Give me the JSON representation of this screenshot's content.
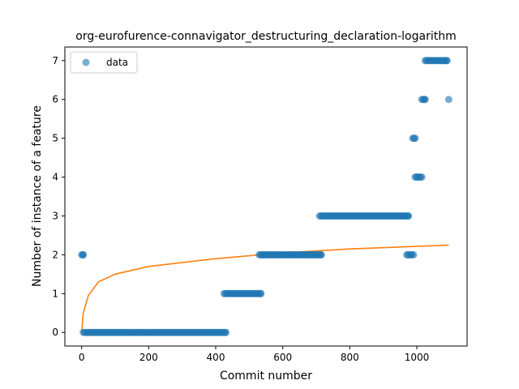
{
  "chart_data": {
    "type": "scatter",
    "title": "org-eurofurence-connavigator_destructuring_declaration-logarithm",
    "xlabel": "Commit number",
    "ylabel": "Number of instance of a feature",
    "xlim": [
      -50,
      1150
    ],
    "ylim": [
      -0.35,
      7.35
    ],
    "xticks": [
      0,
      200,
      400,
      600,
      800,
      1000
    ],
    "yticks": [
      0,
      1,
      2,
      3,
      4,
      5,
      6,
      7
    ],
    "legend": {
      "placement": "top-left",
      "entries": [
        "data"
      ]
    },
    "grid": false,
    "colors": {
      "data": "#1f77b4",
      "fit": "#ff7f0e"
    },
    "series": [
      {
        "name": "data",
        "kind": "scatter",
        "runs": [
          {
            "x_start": 0,
            "x_end": 5,
            "y": 2
          },
          {
            "x_start": 5,
            "x_end": 430,
            "y": 0
          },
          {
            "x_start": 425,
            "x_end": 535,
            "y": 1
          },
          {
            "x_start": 530,
            "x_end": 715,
            "y": 2
          },
          {
            "x_start": 710,
            "x_end": 975,
            "y": 3
          },
          {
            "x_start": 970,
            "x_end": 990,
            "y": 2
          },
          {
            "x_start": 988,
            "x_end": 995,
            "y": 5
          },
          {
            "x_start": 995,
            "x_end": 1015,
            "y": 4
          },
          {
            "x_start": 1015,
            "x_end": 1025,
            "y": 6
          },
          {
            "x_start": 1025,
            "x_end": 1090,
            "y": 7
          },
          {
            "x_start": 1095,
            "x_end": 1095,
            "y": 6
          }
        ]
      },
      {
        "kind": "line",
        "model": "logarithmic",
        "x_range": [
          0,
          1095
        ],
        "y_at_x": [
          [
            0,
            0
          ],
          [
            5,
            0.5
          ],
          [
            20,
            0.95
          ],
          [
            50,
            1.3
          ],
          [
            100,
            1.5
          ],
          [
            200,
            1.7
          ],
          [
            400,
            1.9
          ],
          [
            600,
            2.05
          ],
          [
            800,
            2.15
          ],
          [
            1095,
            2.25
          ]
        ]
      }
    ]
  }
}
